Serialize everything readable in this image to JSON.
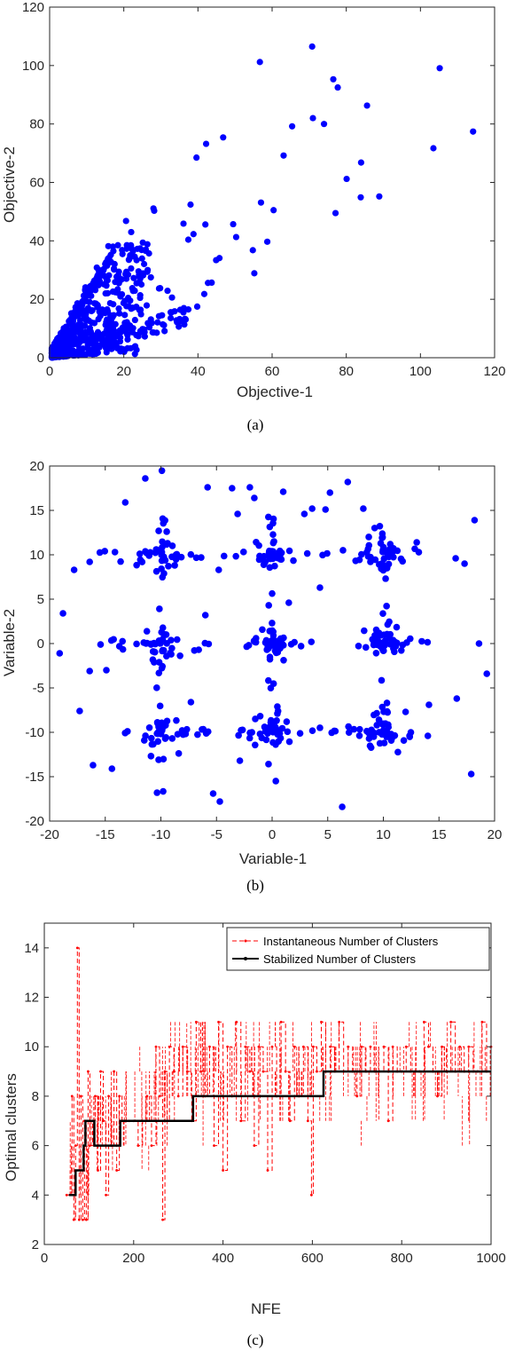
{
  "chart_data": [
    {
      "type": "scatter",
      "caption": "(a)",
      "xlabel": "Objective-1",
      "ylabel": "Objective-2",
      "xlim": [
        0,
        120
      ],
      "ylim": [
        0,
        120
      ],
      "xticks": [
        0,
        20,
        40,
        60,
        80,
        100,
        120
      ],
      "yticks": [
        0,
        20,
        40,
        60,
        80,
        100,
        120
      ],
      "grid": false,
      "marker_color": "#0000ff",
      "points_x": [
        70.8,
        56.7,
        76.5,
        77.7,
        85.6,
        105.2,
        114.2,
        103.5,
        71.0,
        74.0,
        65.4,
        63.1,
        84.0,
        80.1,
        83.9,
        88.9,
        77.1,
        60.4,
        57.0,
        58.7,
        54.8,
        55.2,
        49.5,
        50.3,
        46.8,
        42.2,
        39.6,
        38.0,
        45.8,
        44.9,
        43.7,
        37.4,
        29.8,
        33.0,
        35.2,
        36.2,
        28.0,
        28.2,
        20.6,
        22.0,
        18.4,
        16.5,
        15.0,
        14.1,
        25.9,
        24.1,
        22.3,
        19.5,
        27.3,
        29.5,
        24.4,
        31.8,
        42.0,
        36.1,
        38.8,
        26.8,
        41.7,
        39.8,
        33.7,
        34.8,
        29.1,
        36.5,
        42.7
      ],
      "points_y": [
        106.5,
        101.2,
        95.3,
        92.5,
        86.3,
        99.1,
        77.4,
        71.7,
        82.0,
        80.0,
        79.2,
        69.2,
        66.8,
        61.2,
        54.9,
        55.2,
        49.5,
        50.5,
        53.1,
        39.7,
        36.8,
        28.9,
        45.7,
        41.3,
        75.4,
        73.2,
        68.5,
        52.4,
        34.1,
        33.4,
        25.7,
        40.4,
        23.8,
        20.6,
        16.4,
        17.0,
        51.1,
        50.3,
        46.8,
        43.0,
        38.5,
        35.2,
        32.1,
        29.9,
        36.6,
        28.3,
        23.8,
        21.7,
        27.5,
        23.7,
        20.5,
        22.9,
        45.6,
        45.9,
        42.3,
        35.7,
        21.8,
        17.5,
        15.9,
        12.4,
        12.1,
        13.3,
        25.6
      ]
    },
    {
      "type": "scatter",
      "caption": "(b)",
      "xlabel": "Variable-1",
      "ylabel": "Variable-2",
      "xlim": [
        -20,
        20
      ],
      "ylim": [
        -20,
        20
      ],
      "xticks": [
        -20,
        -15,
        -10,
        -5,
        0,
        5,
        10,
        15,
        20
      ],
      "yticks": [
        -20,
        -15,
        -10,
        -5,
        0,
        5,
        10,
        15,
        20
      ],
      "grid": false,
      "marker_color": "#0000ff",
      "centers_x": [
        -10,
        0,
        10
      ],
      "centers_y": [
        -10,
        0,
        10
      ],
      "outliers_x": [
        -11.4,
        -5.8,
        -3.6,
        -2.0,
        1.0,
        5.2,
        6.8,
        3.6,
        8.2,
        -13.2,
        -3.1,
        -1.6,
        2.9,
        4.8,
        -17.8,
        -16.4,
        18.2,
        17.3,
        13.0,
        -18.8,
        -19.1,
        -14.9,
        16.5,
        19.3,
        18.6,
        -17.3,
        16.6,
        -16.4,
        -5.3,
        -4.7,
        6.3,
        1.5,
        -2.9,
        -7.3,
        14.1,
        17.9,
        12.0,
        -16.1,
        -14.4,
        -6.0,
        4.3,
        1.5,
        -6.6,
        -4.8,
        14.0
      ],
      "outliers_y": [
        18.6,
        17.6,
        17.5,
        17.6,
        17.1,
        17.0,
        18.2,
        15.2,
        15.2,
        15.9,
        14.6,
        16.4,
        14.6,
        15.1,
        8.3,
        9.2,
        13.9,
        9.0,
        11.4,
        3.4,
        -1.1,
        -3.0,
        9.6,
        -3.4,
        0.0,
        -7.6,
        -6.2,
        -3.1,
        -16.9,
        -17.8,
        -18.4,
        -19.9,
        -13.2,
        -6.6,
        -6.9,
        -14.7,
        -7.7,
        -13.7,
        -14.1,
        3.2,
        6.3,
        4.6,
        -0.7,
        8.3,
        -10.4
      ]
    },
    {
      "type": "line",
      "caption": "(c)",
      "xlabel": "NFE",
      "ylabel": "Optimal clusters",
      "xlim": [
        0,
        1000
      ],
      "ylim": [
        2,
        15
      ],
      "xticks": [
        0,
        200,
        400,
        600,
        800,
        1000
      ],
      "yticks": [
        2,
        4,
        6,
        8,
        10,
        12,
        14
      ],
      "grid": false,
      "legend_position": "top-right",
      "series": [
        {
          "name": "Instantaneous Number of Clusters",
          "color": "#ff0000",
          "style": "dashed",
          "x": [
            50,
            62,
            66,
            70,
            74,
            78,
            82,
            86,
            90,
            94,
            98,
            102,
            108,
            114,
            120,
            126,
            132,
            138,
            144,
            150,
            156,
            162,
            168,
            174,
            180,
            190,
            200,
            210,
            220,
            230,
            240,
            250,
            258,
            265,
            270,
            275,
            280,
            290,
            300,
            310,
            320,
            330,
            340,
            350,
            360,
            370,
            380,
            390,
            400,
            410,
            420,
            430,
            440,
            450,
            460,
            470,
            480,
            490,
            500,
            510,
            520,
            530,
            540,
            550,
            560,
            570,
            580,
            590,
            598,
            602,
            610,
            620,
            630,
            640,
            650,
            660,
            670,
            680,
            690,
            700,
            710,
            720,
            730,
            740,
            750,
            760,
            770,
            780,
            790,
            800,
            810,
            820,
            830,
            840,
            850,
            860,
            870,
            880,
            890,
            900,
            910,
            920,
            930,
            940,
            950,
            960,
            970,
            980,
            990,
            1000
          ],
          "y": [
            4,
            8,
            3,
            6,
            14,
            3,
            8,
            3,
            7,
            3,
            9,
            6,
            7,
            8,
            5,
            9,
            7,
            4,
            8,
            6,
            9,
            5,
            8,
            7,
            7,
            7,
            7,
            6,
            7,
            8,
            6,
            10,
            8,
            3,
            9,
            7,
            10,
            9,
            8,
            10,
            9,
            7,
            11,
            9,
            8,
            10,
            6,
            11,
            5,
            10,
            8,
            11,
            7,
            10,
            9,
            6,
            10,
            9,
            5,
            10,
            8,
            11,
            9,
            7,
            10,
            8,
            10,
            7,
            4,
            10,
            9,
            11,
            9,
            10,
            9,
            11,
            9,
            10,
            9,
            8,
            10,
            9,
            10,
            9,
            9,
            10,
            7,
            10,
            9,
            9,
            10,
            9,
            9,
            9,
            11,
            10,
            9,
            8,
            10,
            9,
            11,
            9,
            10,
            9,
            10,
            9,
            9,
            11,
            9,
            10
          ]
        },
        {
          "name": "Stabilized Number of Clusters",
          "color": "#000000",
          "style": "solid",
          "x": [
            55,
            70,
            70,
            88,
            88,
            92,
            92,
            112,
            112,
            170,
            170,
            333,
            333,
            625,
            625,
            1000
          ],
          "y": [
            4,
            4,
            5,
            5,
            6,
            6,
            7,
            7,
            6,
            6,
            7,
            7,
            8,
            8,
            9,
            9
          ]
        }
      ]
    }
  ]
}
